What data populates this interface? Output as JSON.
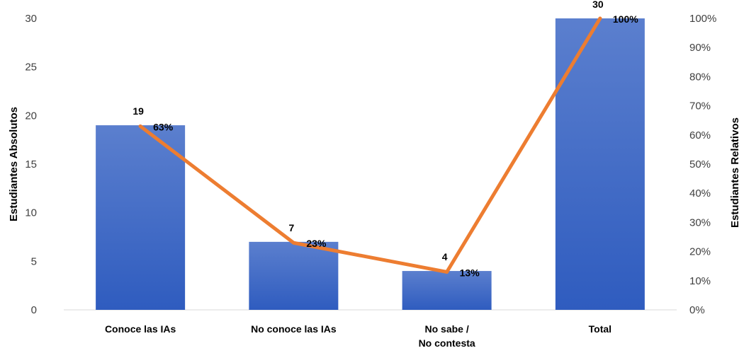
{
  "chart_data": {
    "type": "bar",
    "categories": [
      [
        "Conoce las IAs"
      ],
      [
        "No conoce las IAs"
      ],
      [
        "No sabe /",
        "No contesta"
      ],
      [
        "Total"
      ]
    ],
    "series": [
      {
        "values": [
          19,
          7,
          4,
          30
        ],
        "axis": "left",
        "kind": "bar",
        "labels": [
          "19",
          "7",
          "4",
          "30"
        ]
      },
      {
        "values": [
          0.63,
          0.23,
          0.13,
          1.0
        ],
        "axis": "right",
        "kind": "line",
        "labels": [
          "63%",
          "23%",
          "13%",
          "100%"
        ]
      }
    ],
    "ylabel": "Estudiantes Absolutos",
    "y2label": "Estudiantes Relativos",
    "ylim": [
      0,
      30
    ],
    "y2lim": [
      0,
      1
    ],
    "yticks": [
      "0",
      "5",
      "10",
      "15",
      "20",
      "25",
      "30"
    ],
    "y2ticks": [
      "0%",
      "10%",
      "20%",
      "30%",
      "40%",
      "50%",
      "60%",
      "70%",
      "80%",
      "90%",
      "100%"
    ],
    "colors": {
      "bar_top": "#5b7fce",
      "bar_bottom": "#2f5cbf",
      "line": "#ed7d31",
      "axis": "#d9d9d9"
    },
    "legend": "none",
    "grid": false
  }
}
